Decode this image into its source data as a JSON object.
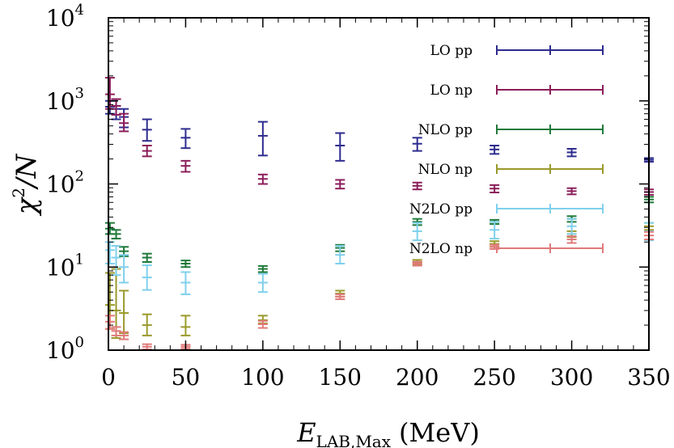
{
  "chart_data": {
    "type": "scatter",
    "xlabel": "E",
    "xlabel_sub": "LAB,Max",
    "xlabel_unit": "(MeV)",
    "ylabel": "χ",
    "ylabel_sup": "2",
    "ylabel_den": "/N",
    "xlim": [
      0,
      350
    ],
    "ylim": [
      1,
      10000
    ],
    "y_scale": "log",
    "grid": false,
    "legend_position": "right",
    "x_ticks": [
      0,
      50,
      100,
      150,
      200,
      250,
      300,
      350
    ],
    "y_ticks": [
      {
        "value": 1,
        "base": "10",
        "exp": "0"
      },
      {
        "value": 10,
        "base": "10",
        "exp": "1"
      },
      {
        "value": 100,
        "base": "10",
        "exp": "2"
      },
      {
        "value": 1000,
        "base": "10",
        "exp": "3"
      },
      {
        "value": 10000,
        "base": "10",
        "exp": "4"
      }
    ],
    "series": [
      {
        "name": "LO pp",
        "color": "#2e2c8f",
        "points": [
          {
            "x": 1,
            "y": 850,
            "lo": 700,
            "hi": 1000
          },
          {
            "x": 5,
            "y": 800,
            "lo": 600,
            "hi": 1050
          },
          {
            "x": 10,
            "y": 640,
            "lo": 480,
            "hi": 800
          },
          {
            "x": 25,
            "y": 450,
            "lo": 330,
            "hi": 600
          },
          {
            "x": 50,
            "y": 360,
            "lo": 270,
            "hi": 460
          },
          {
            "x": 100,
            "y": 380,
            "lo": 220,
            "hi": 560
          },
          {
            "x": 150,
            "y": 290,
            "lo": 190,
            "hi": 410
          },
          {
            "x": 200,
            "y": 305,
            "lo": 250,
            "hi": 360
          },
          {
            "x": 250,
            "y": 260,
            "lo": 230,
            "hi": 290
          },
          {
            "x": 300,
            "y": 240,
            "lo": 215,
            "hi": 265
          },
          {
            "x": 350,
            "y": 195,
            "lo": 185,
            "hi": 205
          }
        ]
      },
      {
        "name": "LO np",
        "color": "#8b1e5a",
        "points": [
          {
            "x": 1,
            "y": 1200,
            "lo": 800,
            "hi": 1900
          },
          {
            "x": 5,
            "y": 870,
            "lo": 680,
            "hi": 1050
          },
          {
            "x": 10,
            "y": 540,
            "lo": 430,
            "hi": 700
          },
          {
            "x": 25,
            "y": 250,
            "lo": 215,
            "hi": 290
          },
          {
            "x": 50,
            "y": 165,
            "lo": 140,
            "hi": 190
          },
          {
            "x": 100,
            "y": 115,
            "lo": 100,
            "hi": 130
          },
          {
            "x": 150,
            "y": 100,
            "lo": 88,
            "hi": 112
          },
          {
            "x": 200,
            "y": 95,
            "lo": 86,
            "hi": 104
          },
          {
            "x": 250,
            "y": 88,
            "lo": 79,
            "hi": 97
          },
          {
            "x": 300,
            "y": 82,
            "lo": 75,
            "hi": 89
          },
          {
            "x": 350,
            "y": 80,
            "lo": 74,
            "hi": 86
          }
        ]
      },
      {
        "name": "NLO pp",
        "color": "#1f7a3a",
        "points": [
          {
            "x": 1,
            "y": 29,
            "lo": 25,
            "hi": 34
          },
          {
            "x": 5,
            "y": 25,
            "lo": 22,
            "hi": 28
          },
          {
            "x": 10,
            "y": 15.5,
            "lo": 13.5,
            "hi": 17.5
          },
          {
            "x": 25,
            "y": 13,
            "lo": 11.5,
            "hi": 14.5
          },
          {
            "x": 50,
            "y": 11,
            "lo": 10,
            "hi": 12
          },
          {
            "x": 100,
            "y": 9.5,
            "lo": 8.7,
            "hi": 10.3
          },
          {
            "x": 150,
            "y": 17,
            "lo": 15.5,
            "hi": 18.5
          },
          {
            "x": 200,
            "y": 35,
            "lo": 32,
            "hi": 38
          },
          {
            "x": 250,
            "y": 35,
            "lo": 33,
            "hi": 37
          },
          {
            "x": 300,
            "y": 38,
            "lo": 35,
            "hi": 41
          },
          {
            "x": 350,
            "y": 65,
            "lo": 60,
            "hi": 70
          }
        ]
      },
      {
        "name": "NLO np",
        "color": "#9a9a2c",
        "points": [
          {
            "x": 1,
            "y": 3.5,
            "lo": 1.8,
            "hi": 8.5
          },
          {
            "x": 5,
            "y": 3,
            "lo": 1.4,
            "hi": 9.5
          },
          {
            "x": 10,
            "y": 2.8,
            "lo": 1.6,
            "hi": 5.2
          },
          {
            "x": 25,
            "y": 2,
            "lo": 1.5,
            "hi": 2.7
          },
          {
            "x": 50,
            "y": 1.9,
            "lo": 1.5,
            "hi": 2.6
          },
          {
            "x": 100,
            "y": 2.3,
            "lo": 2.1,
            "hi": 2.6
          },
          {
            "x": 150,
            "y": 4.8,
            "lo": 4.4,
            "hi": 5.2
          },
          {
            "x": 200,
            "y": 11.5,
            "lo": 10.8,
            "hi": 12.2
          },
          {
            "x": 250,
            "y": 19,
            "lo": 17.5,
            "hi": 20.5
          },
          {
            "x": 300,
            "y": 25,
            "lo": 23,
            "hi": 27
          },
          {
            "x": 350,
            "y": 31,
            "lo": 28,
            "hi": 34
          }
        ]
      },
      {
        "name": "N2LO pp",
        "color": "#7fd0ec",
        "points": [
          {
            "x": 1,
            "y": 16,
            "lo": 11,
            "hi": 20
          },
          {
            "x": 5,
            "y": 13,
            "lo": 8,
            "hi": 18
          },
          {
            "x": 10,
            "y": 10,
            "lo": 6.5,
            "hi": 14
          },
          {
            "x": 25,
            "y": 7.5,
            "lo": 5.3,
            "hi": 10.5
          },
          {
            "x": 50,
            "y": 6.5,
            "lo": 4.7,
            "hi": 8.7
          },
          {
            "x": 100,
            "y": 6.5,
            "lo": 5,
            "hi": 8.3
          },
          {
            "x": 150,
            "y": 14,
            "lo": 11,
            "hi": 18
          },
          {
            "x": 200,
            "y": 27,
            "lo": 21,
            "hi": 34
          },
          {
            "x": 250,
            "y": 28,
            "lo": 22,
            "hi": 35
          },
          {
            "x": 300,
            "y": 31,
            "lo": 25,
            "hi": 38
          },
          {
            "x": 350,
            "y": 27,
            "lo": 21,
            "hi": 34
          }
        ]
      },
      {
        "name": "N2LO np",
        "color": "#e07a7a",
        "points": [
          {
            "x": 1,
            "y": 2.2,
            "lo": 1.8,
            "hi": 2.6
          },
          {
            "x": 5,
            "y": 1.7,
            "lo": 1.5,
            "hi": 1.9
          },
          {
            "x": 10,
            "y": 1.5,
            "lo": 1.35,
            "hi": 1.65
          },
          {
            "x": 25,
            "y": 1.1,
            "lo": 1.02,
            "hi": 1.18
          },
          {
            "x": 50,
            "y": 1.1,
            "lo": 1.04,
            "hi": 1.16
          },
          {
            "x": 100,
            "y": 2.05,
            "lo": 1.85,
            "hi": 2.25
          },
          {
            "x": 150,
            "y": 4.4,
            "lo": 4.1,
            "hi": 4.7
          },
          {
            "x": 200,
            "y": 11,
            "lo": 10.4,
            "hi": 11.6
          },
          {
            "x": 250,
            "y": 17.5,
            "lo": 16.5,
            "hi": 18.5
          },
          {
            "x": 300,
            "y": 21.5,
            "lo": 19.5,
            "hi": 23.5
          },
          {
            "x": 350,
            "y": 24,
            "lo": 21.5,
            "hi": 26.5
          }
        ]
      }
    ]
  }
}
